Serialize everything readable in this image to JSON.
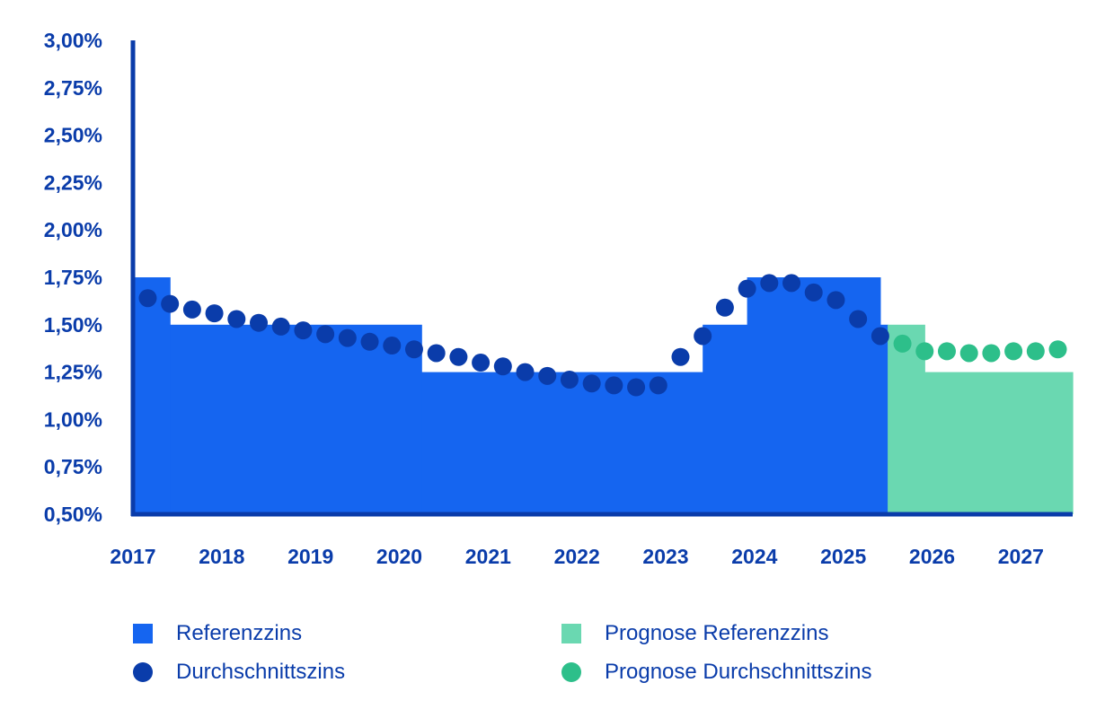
{
  "chart_data": {
    "type": "area",
    "title": "",
    "xlabel": "",
    "ylabel": "",
    "ylim": [
      0.5,
      3.0
    ],
    "xlim": [
      "2017-01",
      "2027-08"
    ],
    "y_ticks": [
      "0,50%",
      "0,75%",
      "1,00%",
      "1,25%",
      "1,50%",
      "1,75%",
      "2,00%",
      "2,25%",
      "2,50%",
      "2,75%",
      "3,00%"
    ],
    "x_ticks": [
      "2017",
      "2018",
      "2019",
      "2020",
      "2021",
      "2022",
      "2023",
      "2024",
      "2025",
      "2026",
      "2027"
    ],
    "grid": false,
    "legend_position": "bottom",
    "series": [
      {
        "name": "Referenzzins",
        "kind": "step",
        "color": "#1565f0",
        "steps": [
          {
            "from": "2017-01",
            "to": "2017-06",
            "value": 1.75
          },
          {
            "from": "2017-06",
            "to": "2020-04",
            "value": 1.5
          },
          {
            "from": "2020-04",
            "to": "2023-06",
            "value": 1.25
          },
          {
            "from": "2023-06",
            "to": "2023-12",
            "value": 1.5
          },
          {
            "from": "2023-12",
            "to": "2025-06",
            "value": 1.75
          },
          {
            "from": "2025-06",
            "to": "2025-07",
            "value": 1.5
          }
        ]
      },
      {
        "name": "Prognose Referenzzins",
        "kind": "step",
        "color": "#6ad8b1",
        "steps": [
          {
            "from": "2025-07",
            "to": "2025-12",
            "value": 1.5
          },
          {
            "from": "2025-12",
            "to": "2027-08",
            "value": 1.25
          }
        ]
      },
      {
        "name": "Durchschnittszins",
        "kind": "dots",
        "color": "#0a3caa",
        "points": [
          {
            "x": "2017-03",
            "y": 1.64
          },
          {
            "x": "2017-06",
            "y": 1.61
          },
          {
            "x": "2017-09",
            "y": 1.58
          },
          {
            "x": "2017-12",
            "y": 1.56
          },
          {
            "x": "2018-03",
            "y": 1.53
          },
          {
            "x": "2018-06",
            "y": 1.51
          },
          {
            "x": "2018-09",
            "y": 1.49
          },
          {
            "x": "2018-12",
            "y": 1.47
          },
          {
            "x": "2019-03",
            "y": 1.45
          },
          {
            "x": "2019-06",
            "y": 1.43
          },
          {
            "x": "2019-09",
            "y": 1.41
          },
          {
            "x": "2019-12",
            "y": 1.39
          },
          {
            "x": "2020-03",
            "y": 1.37
          },
          {
            "x": "2020-06",
            "y": 1.35
          },
          {
            "x": "2020-09",
            "y": 1.33
          },
          {
            "x": "2020-12",
            "y": 1.3
          },
          {
            "x": "2021-03",
            "y": 1.28
          },
          {
            "x": "2021-06",
            "y": 1.25
          },
          {
            "x": "2021-09",
            "y": 1.23
          },
          {
            "x": "2021-12",
            "y": 1.21
          },
          {
            "x": "2022-03",
            "y": 1.19
          },
          {
            "x": "2022-06",
            "y": 1.18
          },
          {
            "x": "2022-09",
            "y": 1.17
          },
          {
            "x": "2022-12",
            "y": 1.18
          },
          {
            "x": "2023-03",
            "y": 1.33
          },
          {
            "x": "2023-06",
            "y": 1.44
          },
          {
            "x": "2023-09",
            "y": 1.59
          },
          {
            "x": "2023-12",
            "y": 1.69
          },
          {
            "x": "2024-03",
            "y": 1.72
          },
          {
            "x": "2024-06",
            "y": 1.72
          },
          {
            "x": "2024-09",
            "y": 1.67
          },
          {
            "x": "2024-12",
            "y": 1.63
          },
          {
            "x": "2025-03",
            "y": 1.53
          },
          {
            "x": "2025-06",
            "y": 1.44
          }
        ]
      },
      {
        "name": "Prognose Durchschnittszins",
        "kind": "dots",
        "color": "#2dbf8a",
        "points": [
          {
            "x": "2025-09",
            "y": 1.4
          },
          {
            "x": "2025-12",
            "y": 1.36
          },
          {
            "x": "2026-03",
            "y": 1.36
          },
          {
            "x": "2026-06",
            "y": 1.35
          },
          {
            "x": "2026-09",
            "y": 1.35
          },
          {
            "x": "2026-12",
            "y": 1.36
          },
          {
            "x": "2027-03",
            "y": 1.36
          },
          {
            "x": "2027-06",
            "y": 1.37
          }
        ]
      }
    ]
  },
  "legend": {
    "items": [
      {
        "label": "Referenzzins",
        "marker": "square",
        "color": "#1565f0"
      },
      {
        "label": "Prognose Referenzzins",
        "marker": "square",
        "color": "#6ad8b1"
      },
      {
        "label": "Durchschnittszins",
        "marker": "circle",
        "color": "#0a3caa"
      },
      {
        "label": "Prognose Durchschnittszins",
        "marker": "circle",
        "color": "#2dbf8a"
      }
    ]
  },
  "colors": {
    "axis": "#0a3caa",
    "tick_text": "#0a3caa",
    "legend_text": "#0a3caa"
  }
}
